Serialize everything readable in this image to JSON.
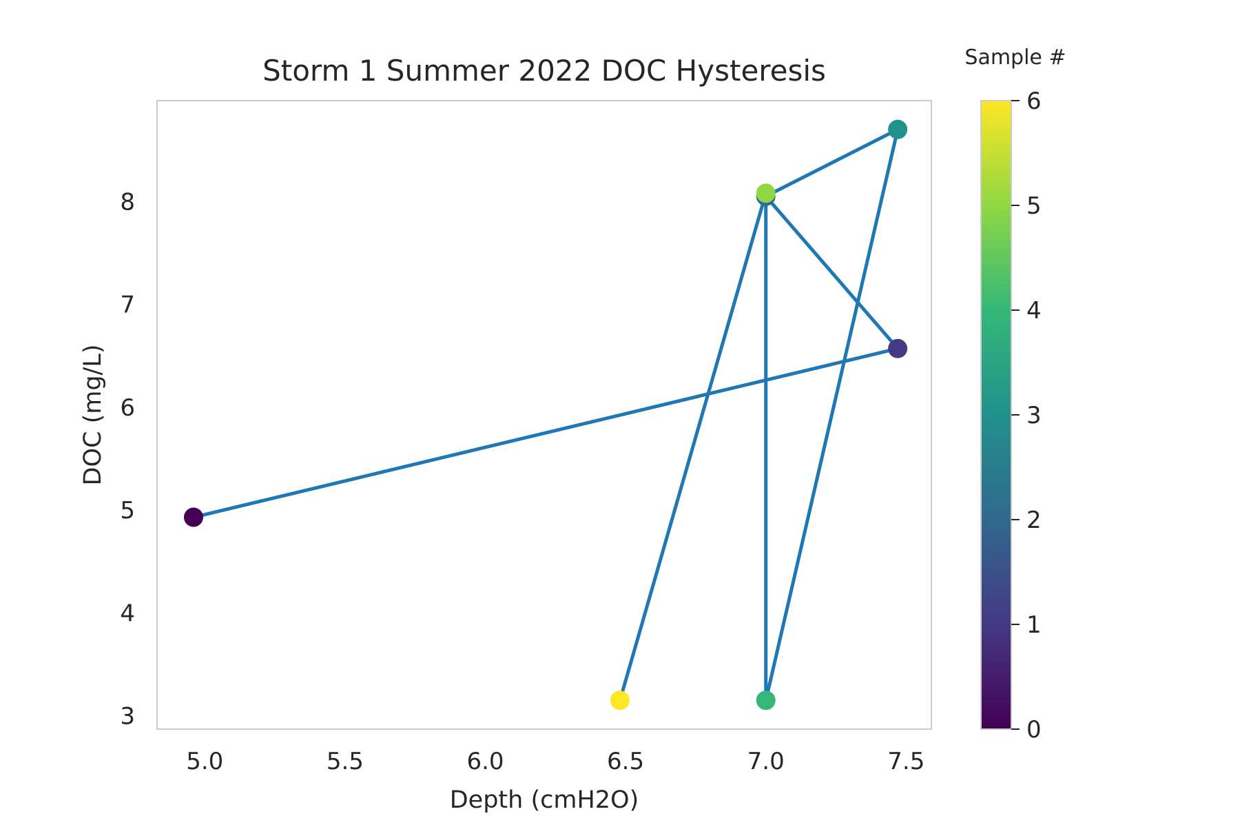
{
  "chart_data": {
    "type": "scatter",
    "title": "Storm 1 Summer 2022 DOC Hysteresis",
    "xlabel": "Depth (cmH2O)",
    "ylabel": "DOC (mg/L)",
    "xlim": [
      4.83,
      7.59
    ],
    "ylim": [
      2.87,
      8.98
    ],
    "xticks": [
      "5.0",
      "5.5",
      "6.0",
      "6.5",
      "7.0",
      "7.5"
    ],
    "yticks": [
      "3",
      "4",
      "5",
      "6",
      "7",
      "8"
    ],
    "grid": false,
    "line_color": "#1f77b4",
    "series": [
      {
        "points": [
          {
            "sample": 0,
            "x": 4.96,
            "y": 4.93,
            "color": "#440154"
          },
          {
            "sample": 1,
            "x": 7.47,
            "y": 6.57,
            "color": "#443983"
          },
          {
            "sample": 2,
            "x": 7.0,
            "y": 8.05,
            "color": "#31688e"
          },
          {
            "sample": 3,
            "x": 7.47,
            "y": 8.7,
            "color": "#21918c"
          },
          {
            "sample": 4,
            "x": 7.0,
            "y": 3.15,
            "color": "#35b779"
          },
          {
            "sample": 5,
            "x": 7.0,
            "y": 8.08,
            "color": "#90d743"
          },
          {
            "sample": 6,
            "x": 6.48,
            "y": 3.15,
            "color": "#fde725"
          }
        ]
      }
    ],
    "colorbar": {
      "title": "Sample #",
      "range": [
        0,
        6
      ],
      "ticks": [
        "0",
        "1",
        "2",
        "3",
        "4",
        "5",
        "6"
      ],
      "colormap": "viridis",
      "stops": [
        "#440154",
        "#443983",
        "#31688e",
        "#21918c",
        "#35b779",
        "#90d743",
        "#fde725"
      ]
    }
  }
}
